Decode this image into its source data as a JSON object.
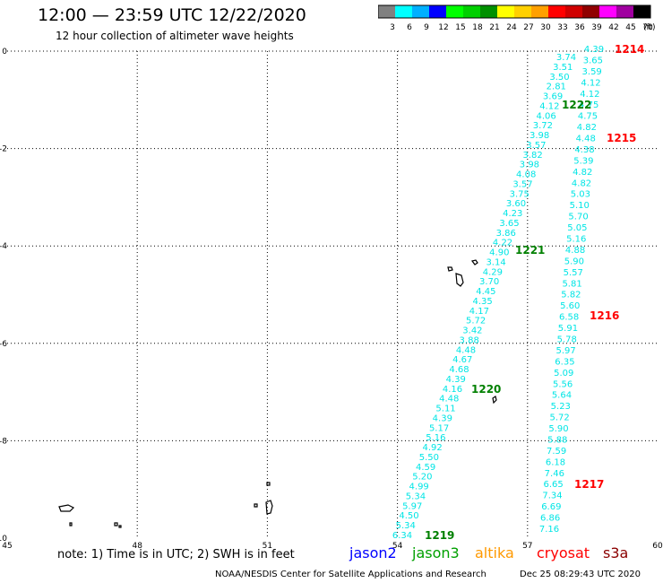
{
  "header": {
    "title": "12:00 — 23:59 UTC 12/22/2020",
    "subtitle": "12 hour collection of altimeter wave heights"
  },
  "color_scale": {
    "labels": [
      "3",
      "6",
      "9",
      "12",
      "15",
      "18",
      "21",
      "24",
      "27",
      "30",
      "33",
      "36",
      "39",
      "42",
      "45",
      "70"
    ],
    "unit": "(ft)",
    "colors": [
      "#808080",
      "#00ffff",
      "#00b0ff",
      "#0000ff",
      "#00ff00",
      "#00d000",
      "#009000",
      "#ffff00",
      "#ffd000",
      "#ffa000",
      "#ff0000",
      "#d00000",
      "#900000",
      "#ff00ff",
      "#a000a0",
      "#000000"
    ]
  },
  "axes": {
    "x_ticks": [
      "45",
      "48",
      "51",
      "54",
      "57",
      "60"
    ],
    "y_ticks": [
      "0",
      "-2",
      "-4",
      "-6",
      "-8",
      "-10"
    ],
    "x_range": [
      45,
      60
    ],
    "y_range": [
      -10,
      0
    ]
  },
  "tracks": [
    {
      "name": "west",
      "color": "#00e5e5",
      "values": [
        "3.74",
        "3.51",
        "3.50",
        "2.81",
        "3.69",
        "4.12",
        "4.06",
        "3.72",
        "3.98",
        "3.57",
        "3.82",
        "3.98",
        "4.08",
        "3.57",
        "3.75",
        "3.60",
        "4.23",
        "3.65",
        "3.86",
        "4.22",
        "4.90",
        "3.14",
        "4.29",
        "3.70",
        "4.45",
        "4.35",
        "4.17",
        "5.72",
        "3.42",
        "3.88",
        "4.48",
        "4.67",
        "4.68",
        "4.39",
        "4.16",
        "4.48",
        "5.11",
        "4.39",
        "5.17",
        "5.16",
        "4.92",
        "5.50",
        "4.59",
        "5.20",
        "4.99",
        "5.34",
        "5.97",
        "4.50",
        "5.34",
        "6.34"
      ]
    },
    {
      "name": "east",
      "color": "#00e5e5",
      "values": [
        "4.39",
        "3.65",
        "3.59",
        "4.12",
        "4.12",
        "4.75",
        "4.75",
        "4.82",
        "4.48",
        "4.38",
        "5.39",
        "4.82",
        "4.82",
        "5.03",
        "5.10",
        "5.70",
        "5.05",
        "5.16",
        "4.88",
        "5.90",
        "5.57",
        "5.81",
        "5.82",
        "5.60",
        "6.58",
        "5.91",
        "5.78",
        "5.97",
        "6.35",
        "5.09",
        "5.56",
        "5.64",
        "5.23",
        "5.72",
        "5.90",
        "5.88",
        "7.59",
        "6.18",
        "7.46",
        "6.65",
        "7.34",
        "6.69",
        "6.86",
        "7.16"
      ]
    }
  ],
  "time_labels": [
    {
      "text": "1214",
      "color": "#ff0000"
    },
    {
      "text": "1222",
      "color": "#008000"
    },
    {
      "text": "1215",
      "color": "#ff0000"
    },
    {
      "text": "1221",
      "color": "#008000"
    },
    {
      "text": "1216",
      "color": "#ff0000"
    },
    {
      "text": "1220",
      "color": "#008000"
    },
    {
      "text": "1217",
      "color": "#ff0000"
    },
    {
      "text": "1219",
      "color": "#008000"
    }
  ],
  "footer": {
    "note": "note: 1) Time is in UTC; 2) SWH is in feet",
    "missions": [
      {
        "name": "jason2",
        "color": "#0000ff"
      },
      {
        "name": "jason3",
        "color": "#00a000"
      },
      {
        "name": "altika",
        "color": "#ff9900"
      },
      {
        "name": "cryosat",
        "color": "#ff0000"
      },
      {
        "name": "s3a",
        "color": "#8b0000"
      }
    ],
    "credit": "NOAA/NESDIS Center for Satellite Applications and Research",
    "timestamp": "Dec 25 08:29:43 UTC 2020"
  }
}
